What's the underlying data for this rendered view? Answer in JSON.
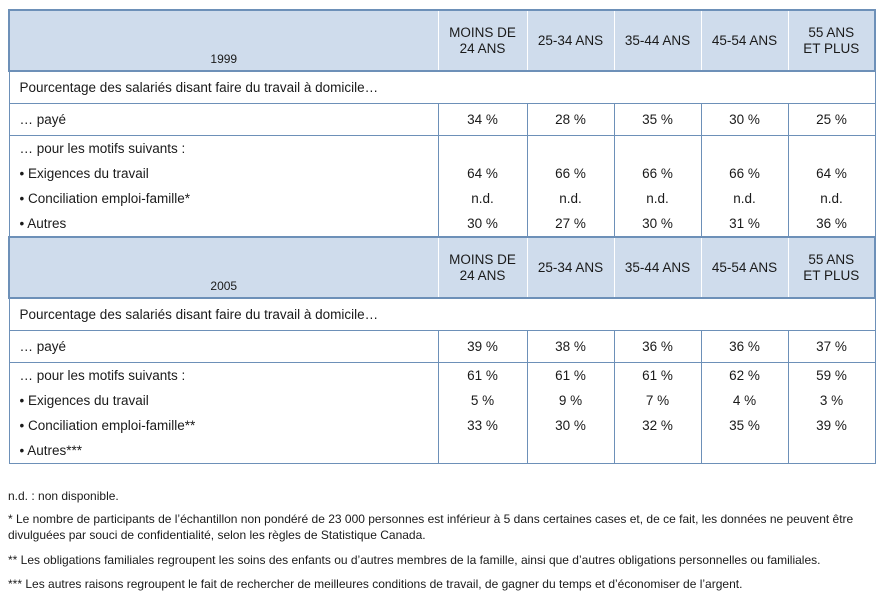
{
  "sections": [
    {
      "year": "1999",
      "age_groups": [
        "MOINS DE\n24 ANS",
        "25-34 ANS",
        "35-44 ANS",
        "45-54 ANS",
        "55 ANS\nET PLUS"
      ],
      "intro": "Pourcentage des salariés disant faire du travail à domicile…",
      "paid_label": "… payé",
      "paid_values": [
        "34 %",
        "28 %",
        "35 %",
        "30 %",
        "25 %"
      ],
      "reasons_label": "… pour les motifs suivants :",
      "reasons": [
        {
          "label": "• Exigences du travail",
          "values": [
            "64 %",
            "66 %",
            "66 %",
            "66 %",
            "64 %"
          ]
        },
        {
          "label": "• Conciliation emploi-famille*",
          "values": [
            "n.d.",
            "n.d.",
            "n.d.",
            "n.d.",
            "n.d."
          ]
        },
        {
          "label": "• Autres",
          "values": [
            "30 %",
            "27 %",
            "30 %",
            "31 %",
            "36 %"
          ]
        }
      ]
    },
    {
      "year": "2005",
      "age_groups": [
        "MOINS DE\n24 ANS",
        "25-34 ANS",
        "35-44 ANS",
        "45-54 ANS",
        "55 ANS\nET PLUS"
      ],
      "intro": "Pourcentage des salariés disant faire du travail à domicile…",
      "paid_label": "… payé",
      "paid_values": [
        "39 %",
        "38 %",
        "36 %",
        "36 %",
        "37 %"
      ],
      "reasons_label": "… pour les motifs suivants :",
      "reasons_label_values": [
        "61 %",
        "61 %",
        "61 %",
        "62 %",
        "59 %"
      ],
      "reasons": [
        {
          "label": "• Exigences du travail",
          "values": [
            "5 %",
            "9 %",
            "7 %",
            "4 %",
            "3 %"
          ]
        },
        {
          "label": "• Conciliation emploi-famille**",
          "values": [
            "33 %",
            "30 %",
            "32 %",
            "35 %",
            "39 %"
          ]
        },
        {
          "label": "• Autres***",
          "values": [
            "",
            "",
            "",
            "",
            ""
          ]
        }
      ]
    }
  ],
  "footnotes": [
    "n.d. : non disponible.",
    "* Le nombre de participants de l’échantillon non pondéré de 23 000 personnes est inférieur à 5 dans certaines cases et, de ce fait, les données ne peuvent être divulguées par souci de confidentialité, selon les règles de Statistique Canada.",
    "** Les obligations familiales regroupent les soins des enfants ou d’autres membres de la famille, ainsi que d’autres obligations personnelles ou familiales.",
    "*** Les autres raisons regroupent le fait de rechercher de meilleures conditions de travail, de gagner du temps et d’économiser de l’argent."
  ]
}
